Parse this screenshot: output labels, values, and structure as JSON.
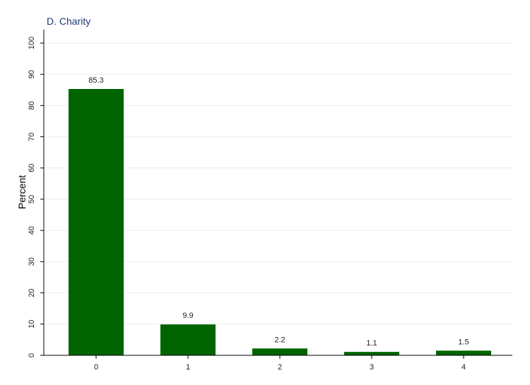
{
  "chart_data": {
    "type": "bar",
    "title": "D. Charity",
    "xlabel": "",
    "ylabel": "Percent",
    "categories": [
      "0",
      "1",
      "2",
      "3",
      "4"
    ],
    "values": [
      85.3,
      9.9,
      2.2,
      1.1,
      1.5
    ],
    "data_labels": [
      "85.3",
      "9.9",
      "2.2",
      "1.1",
      "1.5"
    ],
    "ylim": [
      0,
      100
    ],
    "yticks": [
      0,
      10,
      20,
      30,
      40,
      50,
      60,
      70,
      80,
      90,
      100
    ],
    "ytick_labels": [
      "0",
      "10",
      "20",
      "30",
      "40",
      "50",
      "60",
      "70",
      "80",
      "90",
      "100"
    ],
    "grid": true,
    "legend": "none",
    "bar_color": "#006400"
  }
}
